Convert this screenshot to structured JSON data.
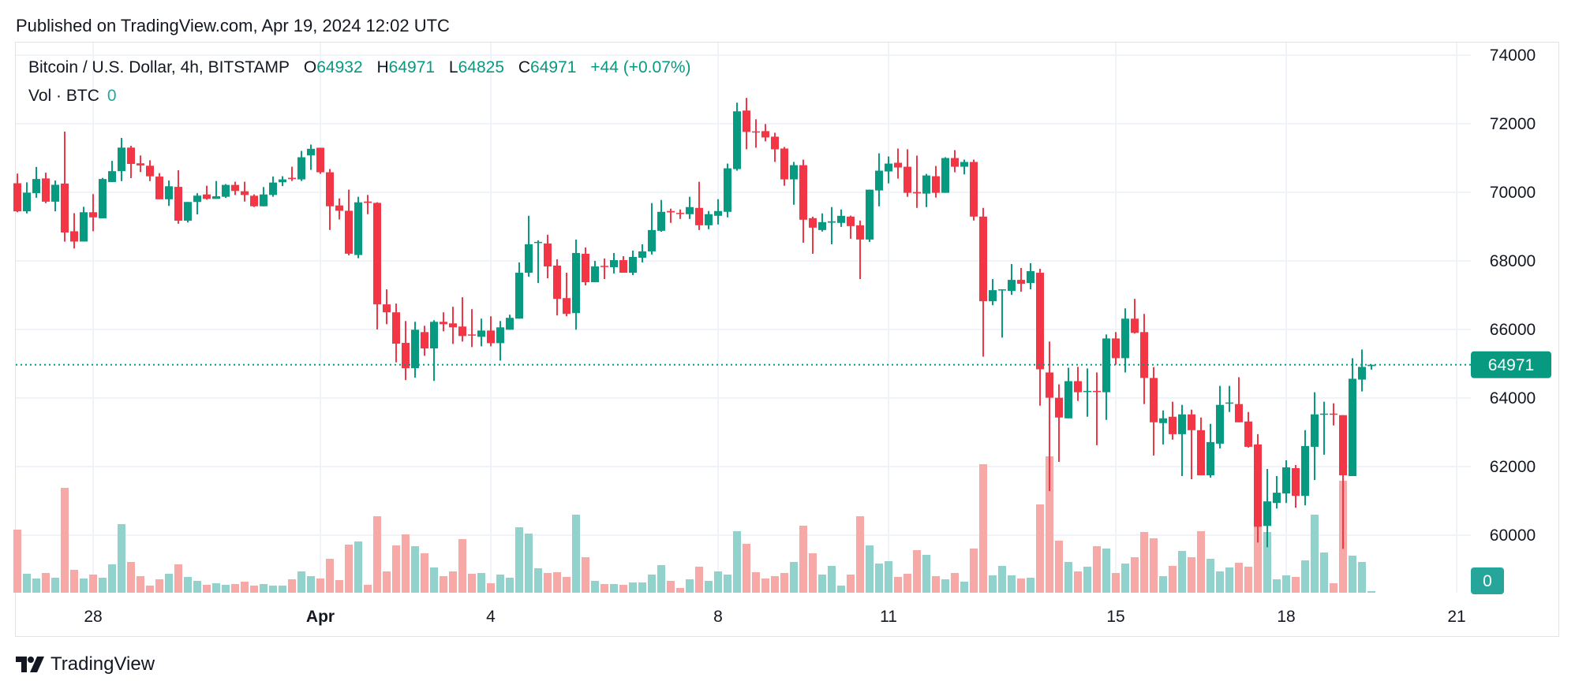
{
  "header": {
    "published": "Published on TradingView.com, Apr 19, 2024 12:02 UTC"
  },
  "legend": {
    "symbol": "Bitcoin / U.S. Dollar, 4h, BITSTAMP",
    "o_label": "O",
    "o_value": "64932",
    "h_label": "H",
    "h_value": "64971",
    "l_label": "L",
    "l_value": "64825",
    "c_label": "C",
    "c_value": "64971",
    "change": "+44 (+0.07%)",
    "volume_label": "Vol · BTC",
    "volume_value": "0"
  },
  "footer": {
    "logo_text": "TradingView"
  },
  "colors": {
    "up": "#089981",
    "down": "#F23645",
    "volume_up": "#92D2CC",
    "volume_down": "#F7A9A7",
    "grid": "#F0F3FA",
    "text": "#131722",
    "volume_badge": "#26A69A"
  },
  "chart_data": {
    "type": "candlestick",
    "symbol": "BTCUSD",
    "interval": "4h",
    "exchange": "BITSTAMP",
    "ylim": [
      58500,
      74500
    ],
    "y_ticks": [
      "74000",
      "72000",
      "70000",
      "68000",
      "66000",
      "64000",
      "62000",
      "60000"
    ],
    "x_ticks": [
      {
        "label": "28",
        "date": "2024-03-28 00:00",
        "bold": false
      },
      {
        "label": "Apr",
        "date": "2024-04-01 00:00",
        "bold": true
      },
      {
        "label": "4",
        "date": "2024-04-04 00:00",
        "bold": false
      },
      {
        "label": "8",
        "date": "2024-04-08 00:00",
        "bold": false
      },
      {
        "label": "11",
        "date": "2024-04-11 00:00",
        "bold": false
      },
      {
        "label": "15",
        "date": "2024-04-15 00:00",
        "bold": false
      },
      {
        "label": "18",
        "date": "2024-04-18 00:00",
        "bold": false
      },
      {
        "label": "21",
        "date": "2024-04-21 00:00",
        "bold": false
      }
    ],
    "last_price": "64971",
    "last_volume": "0",
    "grid": true,
    "columns": [
      "time",
      "open",
      "high",
      "low",
      "close",
      "volume_relative"
    ],
    "candles": [
      [
        "2024-03-26 16:00",
        70264,
        70546,
        69419,
        69445,
        240
      ],
      [
        "2024-03-26 20:00",
        69445,
        70291,
        69383,
        69991,
        72
      ],
      [
        "2024-03-27 00:00",
        69974,
        70740,
        69842,
        70388,
        54
      ],
      [
        "2024-03-27 04:00",
        70405,
        70573,
        69683,
        69727,
        75
      ],
      [
        "2024-03-27 08:00",
        69727,
        70344,
        69445,
        70220,
        57
      ],
      [
        "2024-03-27 12:00",
        70256,
        71771,
        68564,
        68828,
        399
      ],
      [
        "2024-03-27 16:00",
        68864,
        69392,
        68362,
        68564,
        87
      ],
      [
        "2024-03-27 20:00",
        68564,
        69577,
        68564,
        69419,
        54
      ],
      [
        "2024-03-28 00:00",
        69419,
        69947,
        68864,
        69269,
        69
      ],
      [
        "2024-03-28 04:00",
        69242,
        70420,
        69242,
        70388,
        57
      ],
      [
        "2024-03-28 08:00",
        70300,
        70916,
        70300,
        70617,
        108
      ],
      [
        "2024-03-28 12:00",
        70617,
        71586,
        70326,
        71304,
        261
      ],
      [
        "2024-03-28 16:00",
        71304,
        71357,
        70414,
        70828,
        117
      ],
      [
        "2024-03-28 20:00",
        70846,
        71075,
        70590,
        70784,
        63
      ],
      [
        "2024-03-29 00:00",
        70775,
        70934,
        70326,
        70467,
        27
      ],
      [
        "2024-03-29 04:00",
        70458,
        70560,
        69797,
        69797,
        51
      ],
      [
        "2024-03-29 08:00",
        69797,
        70344,
        69604,
        70177,
        72
      ],
      [
        "2024-03-29 12:00",
        70159,
        70643,
        69084,
        69172,
        108
      ],
      [
        "2024-03-29 16:00",
        69172,
        69718,
        69120,
        69718,
        60
      ],
      [
        "2024-03-29 20:00",
        69718,
        69974,
        69357,
        69903,
        45
      ],
      [
        "2024-03-30 00:00",
        69938,
        70192,
        69785,
        69808,
        30
      ],
      [
        "2024-03-30 04:00",
        69808,
        70330,
        69808,
        69885,
        36
      ],
      [
        "2024-03-30 08:00",
        69870,
        70240,
        69840,
        70216,
        30
      ],
      [
        "2024-03-30 12:00",
        70216,
        70310,
        69920,
        70039,
        33
      ],
      [
        "2024-03-30 16:00",
        70031,
        70310,
        69731,
        69923,
        42
      ],
      [
        "2024-03-30 20:00",
        69900,
        69940,
        69570,
        69593,
        27
      ],
      [
        "2024-03-31 00:00",
        69593,
        70154,
        69593,
        69938,
        33
      ],
      [
        "2024-03-31 04:00",
        69923,
        70462,
        69870,
        70285,
        27
      ],
      [
        "2024-03-31 08:00",
        70293,
        70470,
        70180,
        70377,
        27
      ],
      [
        "2024-03-31 12:00",
        70424,
        70746,
        70330,
        70385,
        51
      ],
      [
        "2024-03-31 16:00",
        70377,
        71208,
        70330,
        71023,
        81
      ],
      [
        "2024-03-31 20:00",
        71077,
        71392,
        70654,
        71269,
        63
      ],
      [
        "2024-04-01 00:00",
        71300,
        71300,
        70540,
        70585,
        54
      ],
      [
        "2024-04-01 04:00",
        70585,
        70680,
        68901,
        69593,
        129
      ],
      [
        "2024-04-01 08:00",
        69616,
        69823,
        69208,
        69462,
        48
      ],
      [
        "2024-04-01 12:00",
        69462,
        70077,
        68163,
        68209,
        183
      ],
      [
        "2024-04-01 16:00",
        68171,
        69869,
        68078,
        69708,
        195
      ],
      [
        "2024-04-01 20:00",
        69731,
        69923,
        69362,
        69692,
        30
      ],
      [
        "2024-04-02 00:00",
        69692,
        69710,
        66000,
        66732,
        291
      ],
      [
        "2024-04-02 04:00",
        66732,
        67170,
        66154,
        66500,
        81
      ],
      [
        "2024-04-02 08:00",
        66500,
        66755,
        65040,
        65586,
        180
      ],
      [
        "2024-04-02 12:00",
        65608,
        66246,
        64523,
        64869,
        222
      ],
      [
        "2024-04-02 16:00",
        64869,
        66223,
        64592,
        65992,
        177
      ],
      [
        "2024-04-02 20:00",
        65923,
        66108,
        65231,
        65446,
        150
      ],
      [
        "2024-04-03 00:00",
        65446,
        66269,
        64500,
        66223,
        96
      ],
      [
        "2024-04-03 04:00",
        66223,
        66500,
        65946,
        66154,
        63
      ],
      [
        "2024-04-03 08:00",
        66177,
        66662,
        65577,
        66062,
        81
      ],
      [
        "2024-04-03 12:00",
        66085,
        66938,
        65646,
        65808,
        204
      ],
      [
        "2024-04-03 16:00",
        65854,
        66592,
        65485,
        65831,
        72
      ],
      [
        "2024-04-03 20:00",
        65785,
        66315,
        65508,
        65969,
        75
      ],
      [
        "2024-04-04 00:00",
        65969,
        66385,
        65508,
        65600,
        36
      ],
      [
        "2024-04-04 04:00",
        65600,
        66246,
        65092,
        66062,
        69
      ],
      [
        "2024-04-04 08:00",
        65992,
        66431,
        65992,
        66339,
        57
      ],
      [
        "2024-04-04 12:00",
        66315,
        67954,
        66315,
        67654,
        249
      ],
      [
        "2024-04-04 16:00",
        67654,
        69315,
        67538,
        68485,
        225
      ],
      [
        "2024-04-04 20:00",
        68523,
        68600,
        67354,
        68554,
        93
      ],
      [
        "2024-04-05 00:00",
        68508,
        68762,
        67492,
        67838,
        75
      ],
      [
        "2024-04-05 04:00",
        67862,
        68046,
        66408,
        66892,
        78
      ],
      [
        "2024-04-05 08:00",
        66915,
        67654,
        66385,
        66454,
        60
      ],
      [
        "2024-04-05 12:00",
        66477,
        68623,
        65992,
        68231,
        297
      ],
      [
        "2024-04-05 16:00",
        68208,
        68392,
        67285,
        67377,
        135
      ],
      [
        "2024-04-05 20:00",
        67377,
        68000,
        67377,
        67838,
        45
      ],
      [
        "2024-04-06 00:00",
        67854,
        68069,
        67469,
        67831,
        33
      ],
      [
        "2024-04-06 04:00",
        67815,
        68231,
        67631,
        68023,
        33
      ],
      [
        "2024-04-06 08:00",
        68023,
        68138,
        67654,
        67654,
        30
      ],
      [
        "2024-04-06 12:00",
        67654,
        68300,
        67585,
        68115,
        39
      ],
      [
        "2024-04-06 16:00",
        68092,
        68485,
        67954,
        68277,
        39
      ],
      [
        "2024-04-06 20:00",
        68277,
        69685,
        68185,
        68900,
        69
      ],
      [
        "2024-04-07 00:00",
        68877,
        69777,
        68850,
        69431,
        105
      ],
      [
        "2024-04-07 04:00",
        69454,
        69523,
        69108,
        69415,
        45
      ],
      [
        "2024-04-07 08:00",
        69400,
        69500,
        69223,
        69377,
        18
      ],
      [
        "2024-04-07 12:00",
        69362,
        69869,
        69223,
        69569,
        51
      ],
      [
        "2024-04-07 16:00",
        69546,
        70308,
        68900,
        69038,
        99
      ],
      [
        "2024-04-07 20:00",
        69038,
        69454,
        68923,
        69362,
        45
      ],
      [
        "2024-04-08 00:00",
        69315,
        69800,
        69062,
        69454,
        81
      ],
      [
        "2024-04-08 04:00",
        69431,
        70838,
        69269,
        70700,
        69
      ],
      [
        "2024-04-08 08:00",
        70677,
        72615,
        70631,
        72362,
        234
      ],
      [
        "2024-04-08 12:00",
        72385,
        72754,
        71254,
        71762,
        186
      ],
      [
        "2024-04-08 16:00",
        71777,
        72131,
        71300,
        71754,
        78
      ],
      [
        "2024-04-08 20:00",
        71785,
        71992,
        71485,
        71600,
        54
      ],
      [
        "2024-04-09 00:00",
        71623,
        71738,
        70885,
        71254,
        63
      ],
      [
        "2024-04-09 04:00",
        71277,
        71323,
        70192,
        70377,
        75
      ],
      [
        "2024-04-09 08:00",
        70377,
        70885,
        69638,
        70792,
        117
      ],
      [
        "2024-04-09 12:00",
        70792,
        70954,
        68531,
        69200,
        255
      ],
      [
        "2024-04-09 16:00",
        69246,
        69290,
        68208,
        68969,
        150
      ],
      [
        "2024-04-09 20:00",
        68900,
        69385,
        68854,
        69131,
        69
      ],
      [
        "2024-04-10 00:00",
        69115,
        69569,
        68485,
        69154,
        102
      ],
      [
        "2024-04-10 04:00",
        69108,
        69500,
        68992,
        69315,
        27
      ],
      [
        "2024-04-10 08:00",
        69292,
        69320,
        68646,
        69015,
        69
      ],
      [
        "2024-04-10 12:00",
        69038,
        69177,
        67469,
        68623,
        291
      ],
      [
        "2024-04-10 16:00",
        68623,
        70077,
        68554,
        70077,
        180
      ],
      [
        "2024-04-10 20:00",
        70054,
        71138,
        69592,
        70631,
        111
      ],
      [
        "2024-04-11 00:00",
        70608,
        71046,
        70262,
        70838,
        120
      ],
      [
        "2024-04-11 04:00",
        70862,
        71277,
        70400,
        70723,
        60
      ],
      [
        "2024-04-11 08:00",
        70746,
        71254,
        69869,
        69985,
        72
      ],
      [
        "2024-04-11 12:00",
        70008,
        71069,
        69546,
        69969,
        162
      ],
      [
        "2024-04-11 16:00",
        69962,
        70538,
        69569,
        70492,
        144
      ],
      [
        "2024-04-11 20:00",
        70469,
        70769,
        69846,
        69985,
        63
      ],
      [
        "2024-04-12 00:00",
        69985,
        71023,
        69985,
        71000,
        51
      ],
      [
        "2024-04-12 04:00",
        71000,
        71231,
        70585,
        70746,
        75
      ],
      [
        "2024-04-12 08:00",
        70746,
        70954,
        70523,
        70885,
        42
      ],
      [
        "2024-04-12 12:00",
        70885,
        70954,
        69177,
        69292,
        168
      ],
      [
        "2024-04-12 16:00",
        69292,
        69546,
        65208,
        66823,
        489
      ],
      [
        "2024-04-12 20:00",
        66823,
        67469,
        66708,
        67146,
        66
      ],
      [
        "2024-04-13 00:00",
        67146,
        67170,
        65762,
        67170,
        102
      ],
      [
        "2024-04-13 04:00",
        67123,
        67908,
        67008,
        67446,
        66
      ],
      [
        "2024-04-13 08:00",
        67446,
        67792,
        67100,
        67331,
        54
      ],
      [
        "2024-04-13 12:00",
        67354,
        67931,
        67169,
        67700,
        57
      ],
      [
        "2024-04-13 16:00",
        67654,
        67769,
        63777,
        64838,
        336
      ],
      [
        "2024-04-13 20:00",
        64746,
        65646,
        61285,
        64008,
        519
      ],
      [
        "2024-04-14 00:00",
        64008,
        64400,
        62138,
        63431,
        198
      ],
      [
        "2024-04-14 04:00",
        63408,
        64885,
        63408,
        64492,
        117
      ],
      [
        "2024-04-14 08:00",
        64492,
        64908,
        63915,
        64169,
        81
      ],
      [
        "2024-04-14 12:00",
        64177,
        64862,
        63454,
        64208,
        99
      ],
      [
        "2024-04-14 16:00",
        64208,
        64746,
        62623,
        64177,
        177
      ],
      [
        "2024-04-14 20:00",
        64169,
        65854,
        63362,
        65738,
        168
      ],
      [
        "2024-04-15 00:00",
        65738,
        65923,
        64977,
        65162,
        75
      ],
      [
        "2024-04-15 04:00",
        65162,
        66615,
        64746,
        66315,
        111
      ],
      [
        "2024-04-15 08:00",
        66315,
        66892,
        65880,
        65900,
        135
      ],
      [
        "2024-04-15 12:00",
        65923,
        66454,
        63823,
        64585,
        231
      ],
      [
        "2024-04-15 16:00",
        64585,
        64900,
        62323,
        63292,
        207
      ],
      [
        "2024-04-15 20:00",
        63269,
        63638,
        62646,
        63408,
        63
      ],
      [
        "2024-04-16 00:00",
        63454,
        63892,
        62785,
        62946,
        102
      ],
      [
        "2024-04-16 04:00",
        62946,
        63800,
        61723,
        63523,
        159
      ],
      [
        "2024-04-16 08:00",
        63523,
        63662,
        61631,
        63062,
        135
      ],
      [
        "2024-04-16 12:00",
        63062,
        63431,
        61746,
        61746,
        234
      ],
      [
        "2024-04-16 16:00",
        61746,
        63246,
        61677,
        62715,
        129
      ],
      [
        "2024-04-16 20:00",
        62669,
        64354,
        62531,
        63800,
        81
      ],
      [
        "2024-04-17 00:00",
        63838,
        64354,
        63592,
        63869,
        96
      ],
      [
        "2024-04-17 04:00",
        63823,
        64608,
        63292,
        63292,
        114
      ],
      [
        "2024-04-17 08:00",
        63315,
        63592,
        62554,
        62577,
        99
      ],
      [
        "2024-04-17 12:00",
        62646,
        62946,
        59785,
        60246,
        255
      ],
      [
        "2024-04-17 16:00",
        60269,
        61931,
        59646,
        60985,
        231
      ],
      [
        "2024-04-17 20:00",
        60938,
        61723,
        60777,
        61238,
        51
      ],
      [
        "2024-04-18 00:00",
        61215,
        62185,
        60938,
        61977,
        66
      ],
      [
        "2024-04-18 04:00",
        61954,
        62046,
        60800,
        61146,
        60
      ],
      [
        "2024-04-18 08:00",
        61146,
        63062,
        60869,
        62600,
        123
      ],
      [
        "2024-04-18 12:00",
        62577,
        64169,
        61608,
        63523,
        297
      ],
      [
        "2024-04-18 16:00",
        63523,
        63892,
        62346,
        63546,
        153
      ],
      [
        "2024-04-18 20:00",
        63546,
        63846,
        63200,
        63523,
        36
      ],
      [
        "2024-04-19 00:00",
        63500,
        63500,
        59600,
        61746,
        426
      ],
      [
        "2024-04-19 04:00",
        61723,
        65162,
        61723,
        64562,
        141
      ],
      [
        "2024-04-19 08:00",
        64538,
        65415,
        64192,
        64908,
        117
      ],
      [
        "2024-04-19 12:00",
        64932,
        64971,
        64825,
        64971,
        6
      ]
    ]
  }
}
